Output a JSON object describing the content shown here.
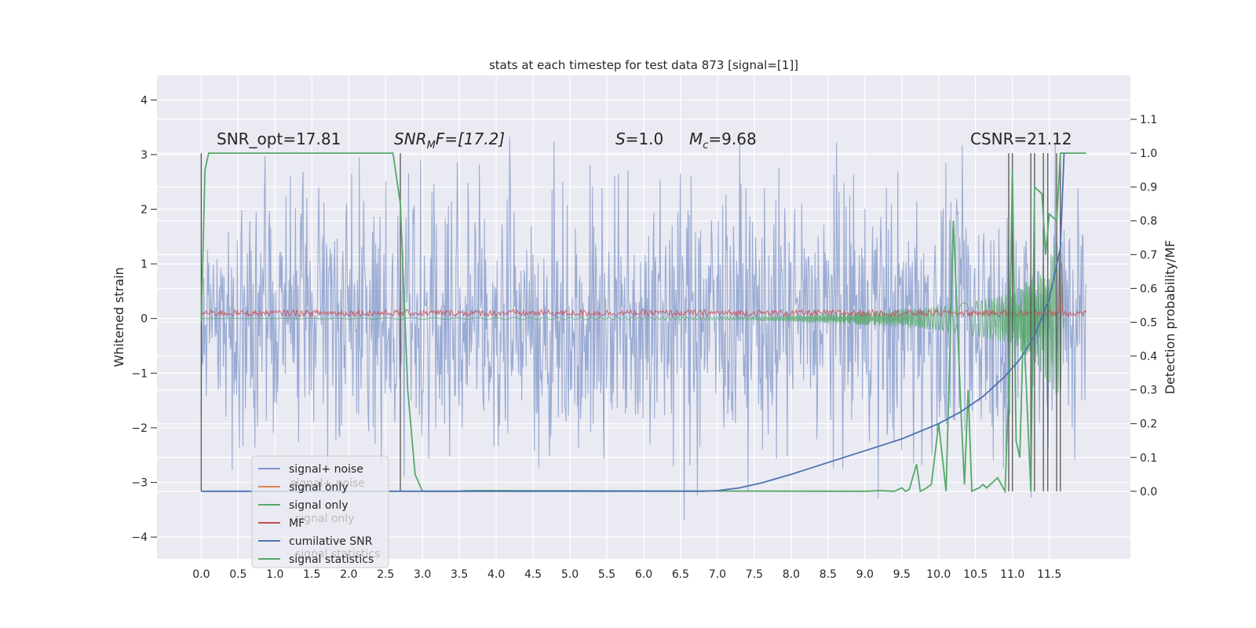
{
  "chart_data": {
    "type": "line",
    "title": "stats at each timestep for test data 873 [signal=[1]]",
    "ylabel_left": "Whitened strain",
    "ylabel_right": "Detection probability/MF",
    "xlim": [
      -0.6,
      12.6
    ],
    "ylim_left": [
      -4.4,
      4.45
    ],
    "ylim_right": [
      -0.2,
      1.23
    ],
    "x_ticks": [
      "0.0",
      "0.5",
      "1.0",
      "1.5",
      "2.0",
      "2.5",
      "3.0",
      "3.5",
      "4.0",
      "4.5",
      "5.0",
      "5.5",
      "6.0",
      "6.5",
      "7.0",
      "7.5",
      "8.0",
      "8.5",
      "9.0",
      "9.5",
      "10.0",
      "10.5",
      "11.0",
      "11.5"
    ],
    "y_ticks_left": [
      "−4",
      "−3",
      "−2",
      "−1",
      "0",
      "1",
      "2",
      "3",
      "4"
    ],
    "y_ticks_right": [
      "0.0",
      "0.1",
      "0.2",
      "0.3",
      "0.4",
      "0.5",
      "0.6",
      "0.7",
      "0.8",
      "0.9",
      "1.0",
      "1.1"
    ],
    "annotations": {
      "snr_opt": "SNR_opt=17.81",
      "snr_mf_sym": "SNR",
      "snr_mf_sub": "M",
      "snr_mf_rest": "F=[17.2]",
      "s_sym": "S",
      "s_rest": "=1.0",
      "mc_sym": "M",
      "mc_sub": "c",
      "mc_rest": "=9.68",
      "csnr": "CSNR=21.12"
    },
    "legend": {
      "placement": "lower-left",
      "entries": [
        {
          "label": "signal+ noise",
          "color": "#7f95c8"
        },
        {
          "label": "signal only",
          "color": "#dd8452"
        },
        {
          "label": "signal only",
          "color": "#55a868"
        },
        {
          "label": "MF",
          "color": "#c44e52"
        },
        {
          "label": "cumilative SNR",
          "color": "#4c72b0"
        },
        {
          "label": "signal statistics",
          "color": "#55a868"
        }
      ],
      "ghost_labels": [
        "signal+ noise",
        "signal only",
        "signal statistics"
      ]
    },
    "colors": {
      "background": "#eaeaf2",
      "grid": "#ffffff",
      "noise": "#7f95c8",
      "signal": "#55a868",
      "mf": "#c44e52",
      "cumulative_snr": "#4c72b0",
      "statistics": "#55a868",
      "markers": "#555555"
    },
    "grid": true,
    "noise_trace": {
      "x_range": [
        0.0,
        12.0
      ],
      "amplitude_envelope": 2.6
    },
    "signal_envelope": {
      "x": [
        0.0,
        7.5,
        9.0,
        10.0,
        10.5,
        11.0,
        11.3,
        11.5,
        11.65,
        11.7
      ],
      "y": [
        0.0,
        0.03,
        0.12,
        0.22,
        0.32,
        0.48,
        0.8,
        1.2,
        1.5,
        0.0
      ]
    },
    "mf_trace": {
      "level": 0.1,
      "spike_x": 11.65,
      "spike_y": 1.0
    },
    "cumulative_snr": {
      "x": [
        0.0,
        6.8,
        7.0,
        7.3,
        7.6,
        8.0,
        8.5,
        9.0,
        9.5,
        10.0,
        10.3,
        10.6,
        10.9,
        11.1,
        11.3,
        11.5,
        11.65,
        11.7
      ],
      "y": [
        0.0,
        0.0,
        0.002,
        0.01,
        0.025,
        0.05,
        0.085,
        0.12,
        0.155,
        0.2,
        0.235,
        0.28,
        0.34,
        0.39,
        0.46,
        0.57,
        0.72,
        1.0
      ]
    },
    "signal_statistics": {
      "x": [
        0.0,
        0.05,
        0.1,
        2.6,
        2.7,
        2.8,
        2.9,
        3.0,
        3.5,
        3.6,
        9.0,
        9.2,
        9.4,
        9.5,
        9.55,
        9.6,
        9.7,
        9.75,
        9.8,
        9.9,
        10.0,
        10.1,
        10.2,
        10.3,
        10.35,
        10.4,
        10.45,
        10.55,
        10.6,
        10.65,
        10.8,
        10.9,
        10.95,
        11.0,
        11.05,
        11.1,
        11.15,
        11.25,
        11.3,
        11.4,
        11.45,
        11.5,
        11.6,
        11.65,
        11.7,
        11.75,
        12.0
      ],
      "y": [
        0.5,
        0.95,
        1.0,
        1.0,
        0.85,
        0.3,
        0.05,
        0.0,
        0.0,
        0.002,
        0.0,
        0.002,
        0.0,
        0.01,
        0.0,
        0.005,
        0.08,
        0.0,
        0.005,
        0.02,
        0.2,
        0.0,
        0.8,
        0.25,
        0.02,
        0.3,
        0.0,
        0.01,
        0.02,
        0.01,
        0.04,
        0.0,
        0.3,
        0.95,
        0.15,
        0.1,
        0.5,
        0.0,
        0.9,
        0.88,
        0.7,
        0.82,
        0.8,
        1.0,
        1.0,
        1.0,
        1.0
      ]
    },
    "marker_lines": {
      "x": [
        0.0,
        2.7,
        10.95,
        11.0,
        11.25,
        11.3,
        11.42,
        11.48,
        11.6,
        11.65
      ],
      "y_bottom": 0.0,
      "y_top": 1.0
    }
  }
}
